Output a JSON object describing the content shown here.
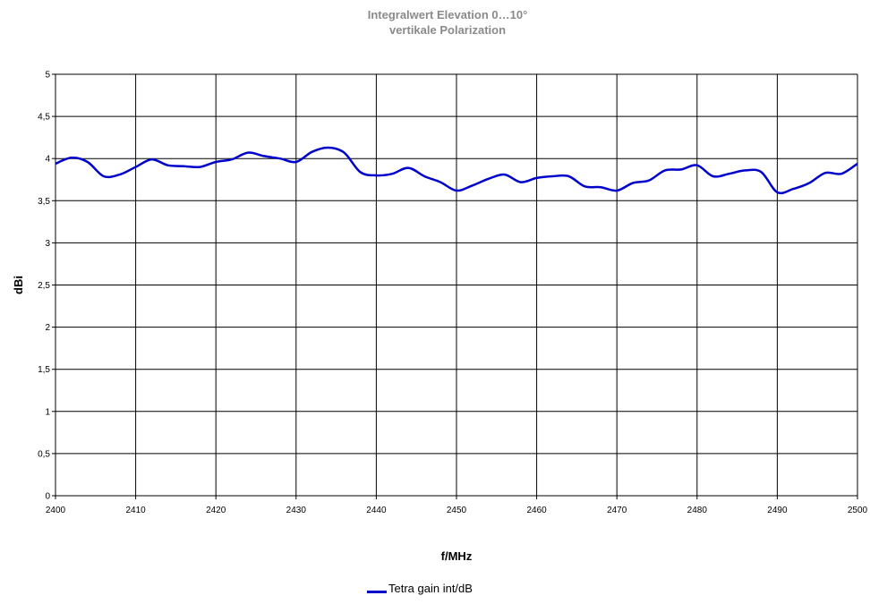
{
  "chart_data": {
    "type": "line",
    "title": "Integralwert Elevation 0…10°",
    "subtitle": "vertikale Polarization",
    "xlabel": "f/MHz",
    "ylabel": "dBi",
    "xlim": [
      2400,
      2500
    ],
    "ylim": [
      0,
      5
    ],
    "x_ticks": [
      2400,
      2410,
      2420,
      2430,
      2440,
      2450,
      2460,
      2470,
      2480,
      2490,
      2500
    ],
    "y_ticks": [
      0,
      0.5,
      1,
      1.5,
      2,
      2.5,
      3,
      3.5,
      4,
      4.5,
      5
    ],
    "y_tick_labels": [
      "0",
      "0,5",
      "1",
      "1,5",
      "2",
      "2,5",
      "3",
      "3,5",
      "4",
      "4,5",
      "5"
    ],
    "grid": true,
    "legend_position": "bottom-center",
    "series": [
      {
        "name": "Tetra gain int/dB",
        "color": "#0000cc",
        "x": [
          2400,
          2402,
          2404,
          2406,
          2408,
          2410,
          2412,
          2414,
          2416,
          2418,
          2420,
          2422,
          2424,
          2426,
          2428,
          2430,
          2432,
          2434,
          2436,
          2438,
          2440,
          2442,
          2444,
          2446,
          2448,
          2450,
          2452,
          2454,
          2456,
          2458,
          2460,
          2462,
          2464,
          2466,
          2468,
          2470,
          2472,
          2474,
          2476,
          2478,
          2480,
          2482,
          2484,
          2486,
          2488,
          2490,
          2492,
          2494,
          2496,
          2498,
          2500
        ],
        "values": [
          3.94,
          4.01,
          3.96,
          3.79,
          3.81,
          3.9,
          3.99,
          3.92,
          3.91,
          3.9,
          3.96,
          3.99,
          4.07,
          4.03,
          4.0,
          3.96,
          4.08,
          4.13,
          4.07,
          3.84,
          3.8,
          3.82,
          3.89,
          3.79,
          3.72,
          3.62,
          3.68,
          3.76,
          3.81,
          3.72,
          3.77,
          3.79,
          3.79,
          3.67,
          3.66,
          3.62,
          3.71,
          3.74,
          3.86,
          3.87,
          3.92,
          3.79,
          3.82,
          3.86,
          3.84,
          3.6,
          3.64,
          3.71,
          3.83,
          3.82,
          3.94
        ]
      }
    ]
  }
}
